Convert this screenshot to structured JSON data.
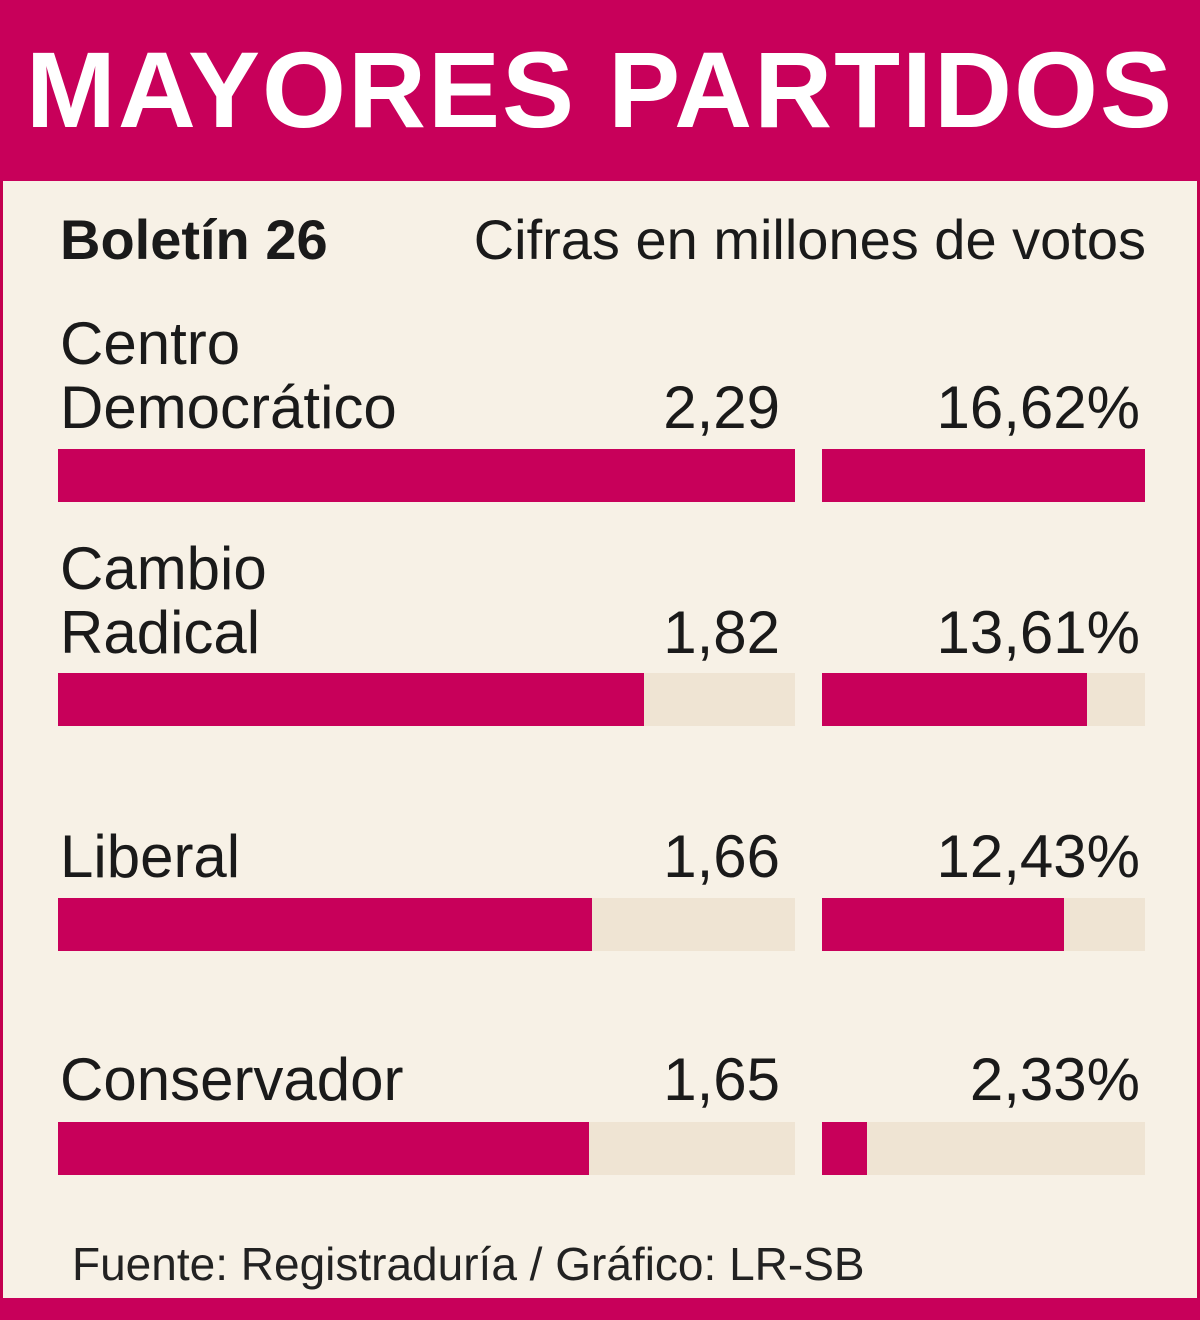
{
  "header": {
    "title": "MAYORES PARTIDOS"
  },
  "subtitle": "Boletín 26",
  "units": "Cifras en millones de votos",
  "chart_data": {
    "type": "bar",
    "title": "MAYORES PARTIDOS",
    "subtitle": "Boletín 26",
    "units_note": "Cifras en millones de votos",
    "categories": [
      "Centro Democrático",
      "Cambio Radical",
      "Liberal",
      "Conservador"
    ],
    "series": [
      {
        "name": "votos",
        "values": [
          2.29,
          1.82,
          1.66,
          1.65
        ],
        "labels": [
          "2,29",
          "1,82",
          "1,66",
          "1,65"
        ],
        "max": 2.29
      },
      {
        "name": "porcentaje",
        "values": [
          16.62,
          13.61,
          12.43,
          2.33
        ],
        "labels": [
          "16,62%",
          "13,61%",
          "12,43%",
          "2,33%"
        ],
        "max": 16.62
      }
    ]
  },
  "rows": [
    {
      "label_line1": "Centro",
      "label_line2": "Democrático",
      "value": "2,29",
      "pct": "16,62%"
    },
    {
      "label_line1": "Cambio",
      "label_line2": "Radical",
      "value": "1,82",
      "pct": "13,61%"
    },
    {
      "label_line1": "",
      "label_line2": "Liberal",
      "value": "1,66",
      "pct": "12,43%"
    },
    {
      "label_line1": "",
      "label_line2": "Conservador",
      "value": "1,65",
      "pct": "2,33%"
    }
  ],
  "source": "Fuente: Registraduría / Gráfico: LR-SB",
  "colors": {
    "accent": "#c8005a",
    "track": "#efe4d3",
    "background": "#f7f1e6"
  }
}
